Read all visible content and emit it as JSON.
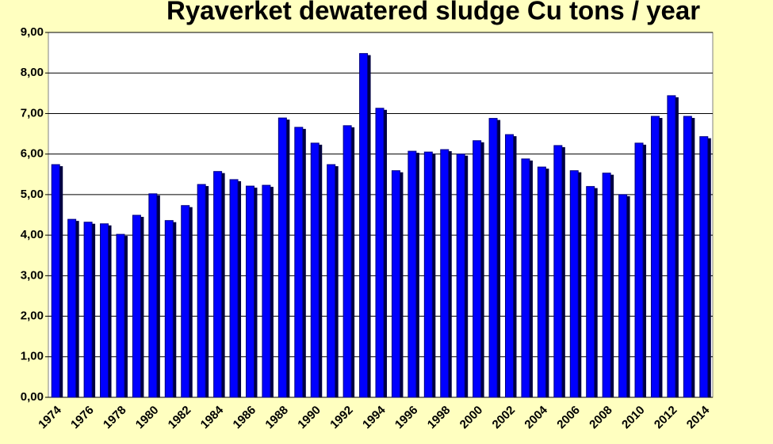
{
  "chart_data": {
    "type": "bar",
    "title": "Ryaverket dewatered sludge Cu tons / year",
    "categories": [
      "1974",
      null,
      "1976",
      null,
      "1978",
      null,
      "1980",
      null,
      "1982",
      null,
      "1984",
      null,
      "1986",
      null,
      "1988",
      null,
      "1990",
      null,
      "1992",
      null,
      "1994",
      null,
      "1996",
      null,
      "1998",
      null,
      "2000",
      null,
      "2002",
      null,
      "2004",
      null,
      "2006",
      null,
      "2008",
      null,
      "2010",
      null,
      "2012",
      null,
      "2014"
    ],
    "values": [
      5.74,
      4.39,
      4.32,
      4.28,
      4.02,
      4.49,
      5.02,
      4.36,
      4.73,
      5.25,
      5.57,
      5.37,
      5.21,
      5.23,
      6.89,
      6.66,
      6.27,
      5.74,
      6.7,
      8.48,
      7.13,
      5.59,
      6.07,
      6.05,
      6.11,
      6.0,
      6.33,
      6.88,
      6.48,
      5.88,
      5.68,
      6.21,
      5.59,
      5.2,
      5.53,
      5.0,
      6.27,
      6.93,
      7.44,
      6.93,
      6.43
    ],
    "color": "#0000ff",
    "ylim": [
      0,
      9
    ],
    "yticks": [
      {
        "value": 0,
        "label": "0,00"
      },
      {
        "value": 1,
        "label": "1,00"
      },
      {
        "value": 2,
        "label": "2,00"
      },
      {
        "value": 3,
        "label": "3,00"
      },
      {
        "value": 4,
        "label": "4,00"
      },
      {
        "value": 5,
        "label": "5,00"
      },
      {
        "value": 6,
        "label": "6,00"
      },
      {
        "value": 7,
        "label": "7,00"
      },
      {
        "value": 8,
        "label": "8,00"
      },
      {
        "value": 9,
        "label": "9,00"
      }
    ],
    "grid": true
  }
}
